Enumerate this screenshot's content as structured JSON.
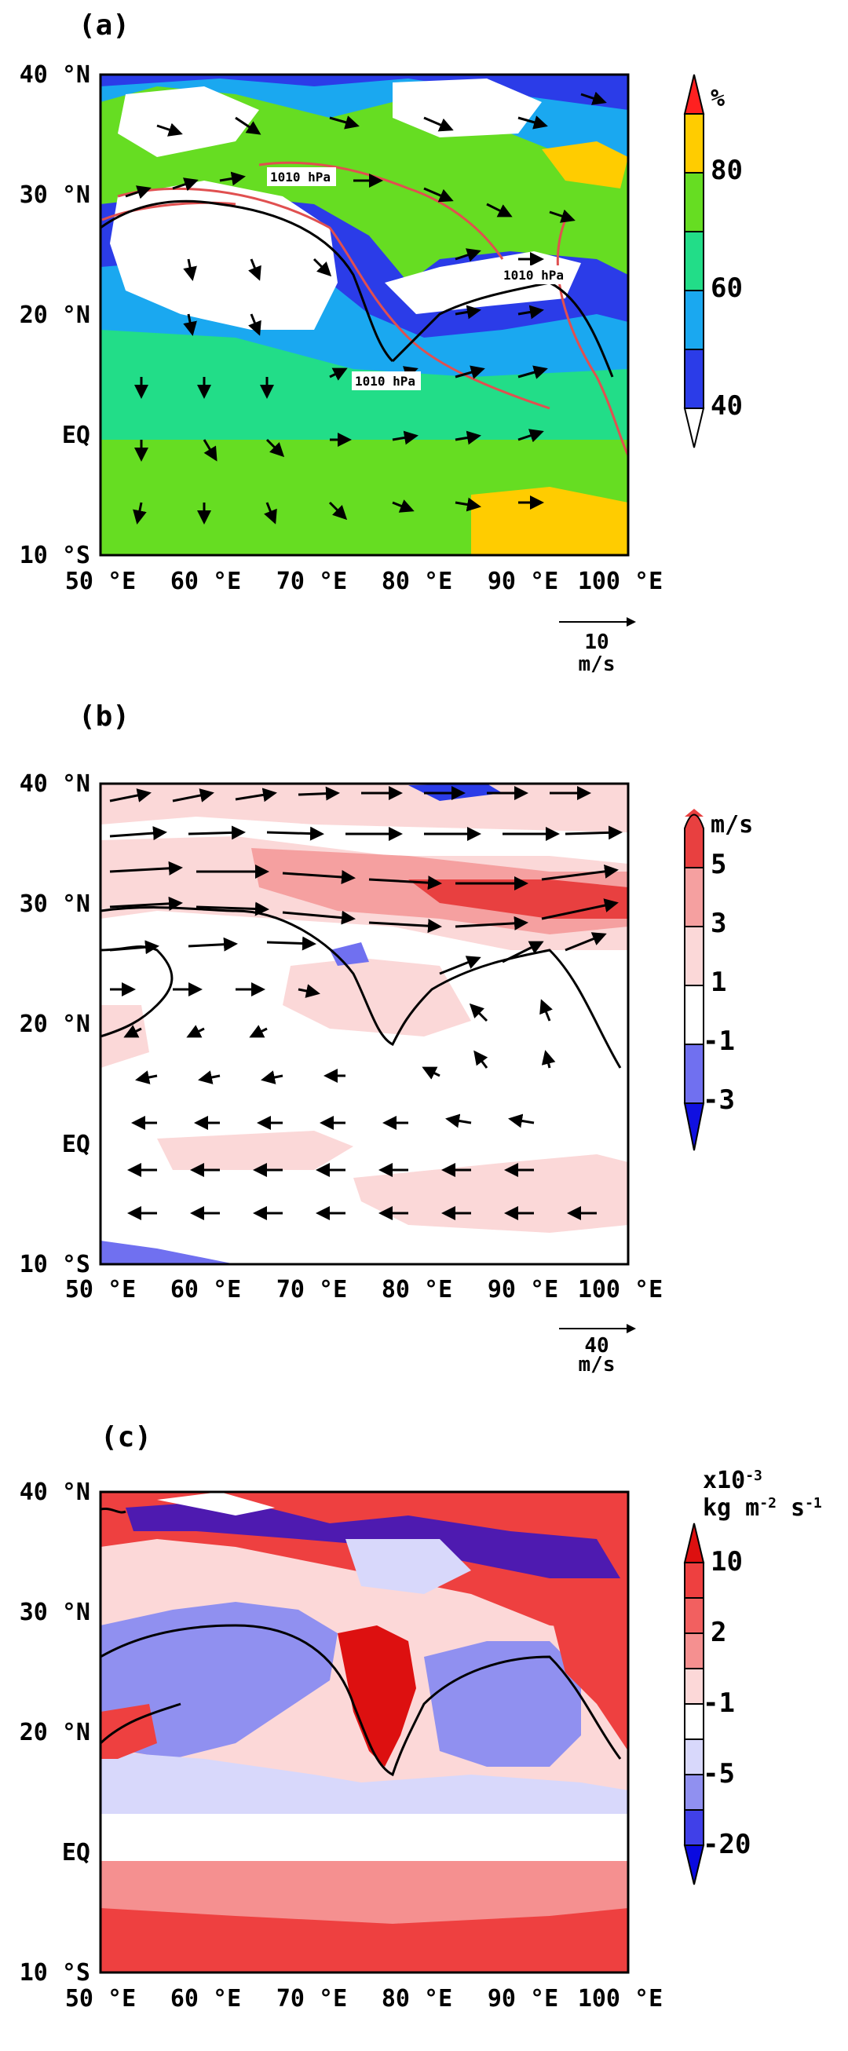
{
  "panels": [
    {
      "label": "(a)",
      "colorbar": {
        "unit": "%",
        "ticks": [
          "80",
          "60",
          "40"
        ],
        "colors": [
          "#ff2020",
          "#ffcc00",
          "#66dd22",
          "#22dd88",
          "#1aa8f0",
          "#2b3ce8",
          "#ffffff"
        ]
      },
      "contour_labels": [
        "1010 hPa",
        "1010 hPa",
        "1010 hPa"
      ],
      "ref_vector": {
        "value": "10",
        "unit": "m/s"
      }
    },
    {
      "label": "(b)",
      "colorbar": {
        "unit": "m/s",
        "ticks": [
          "5",
          "3",
          "1",
          "-1",
          "-3"
        ],
        "colors": [
          "#e84040",
          "#f5a0a0",
          "#fbd8d8",
          "#ffffff",
          "#7070f0",
          "#1010e0"
        ]
      },
      "ref_vector": {
        "value": "40",
        "unit": "m/s"
      }
    },
    {
      "label": "(c)",
      "colorbar": {
        "unit_line1": "x10",
        "unit_exp": "-3",
        "unit_line2_parts": [
          "kg m",
          "-2",
          " s",
          "-1"
        ],
        "ticks": [
          "10",
          "2",
          "-1",
          "-5",
          "-20"
        ],
        "colors": [
          "#dd1010",
          "#ee4040",
          "#f59090",
          "#fcd8d8",
          "#ffffff",
          "#d8d8fb",
          "#9090f0",
          "#4040e8",
          "#0a0ae0"
        ]
      }
    }
  ],
  "axes": {
    "lat_labels": [
      "40 °N",
      "30 °N",
      "20 °N",
      "EQ",
      "10 °S"
    ],
    "lon_labels": [
      "50 °E",
      "60 °E",
      "70 °E",
      "80 °E",
      "90 °E",
      "100 °E"
    ]
  }
}
